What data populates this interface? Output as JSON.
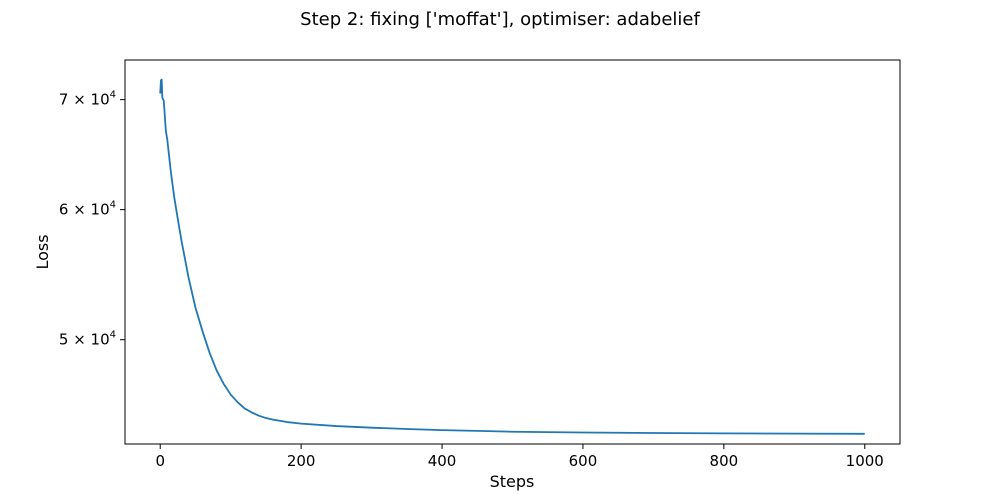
{
  "colors": {
    "line": "#1f77b4",
    "axes": "#000000",
    "background": "#ffffff"
  },
  "chart_data": {
    "type": "line",
    "title": "Step 2: fixing ['moffat'], optimiser: adabelief",
    "xlabel": "Steps",
    "ylabel": "Loss",
    "xscale": "linear",
    "yscale": "log",
    "xlim": [
      -50,
      1050
    ],
    "ylim": [
      43200,
      74000
    ],
    "grid": false,
    "legend": "none",
    "x_ticks": [
      {
        "value": 0,
        "label": "0"
      },
      {
        "value": 200,
        "label": "200"
      },
      {
        "value": 400,
        "label": "400"
      },
      {
        "value": 600,
        "label": "600"
      },
      {
        "value": 800,
        "label": "800"
      },
      {
        "value": 1000,
        "label": "1000"
      }
    ],
    "y_ticks": [
      {
        "value": 50000,
        "mantissa": "5",
        "base": "10",
        "exponent": "4"
      },
      {
        "value": 60000,
        "mantissa": "6",
        "base": "10",
        "exponent": "4"
      },
      {
        "value": 70000,
        "mantissa": "7",
        "base": "10",
        "exponent": "4"
      }
    ],
    "series": [
      {
        "x": [
          0,
          1,
          2,
          3,
          5,
          8,
          10,
          15,
          20,
          25,
          30,
          40,
          50,
          60,
          70,
          80,
          90,
          100,
          110,
          120,
          130,
          140,
          150,
          160,
          180,
          200,
          250,
          300,
          350,
          400,
          450,
          500,
          600,
          700,
          800,
          900,
          1000
        ],
        "y": [
          70600,
          71900,
          72000,
          70200,
          69900,
          67000,
          66200,
          63300,
          61000,
          59200,
          57500,
          54600,
          52300,
          50600,
          49100,
          47900,
          47000,
          46300,
          45800,
          45400,
          45150,
          44950,
          44800,
          44700,
          44550,
          44450,
          44300,
          44200,
          44120,
          44050,
          44000,
          43950,
          43900,
          43870,
          43850,
          43835,
          43820
        ]
      }
    ]
  }
}
